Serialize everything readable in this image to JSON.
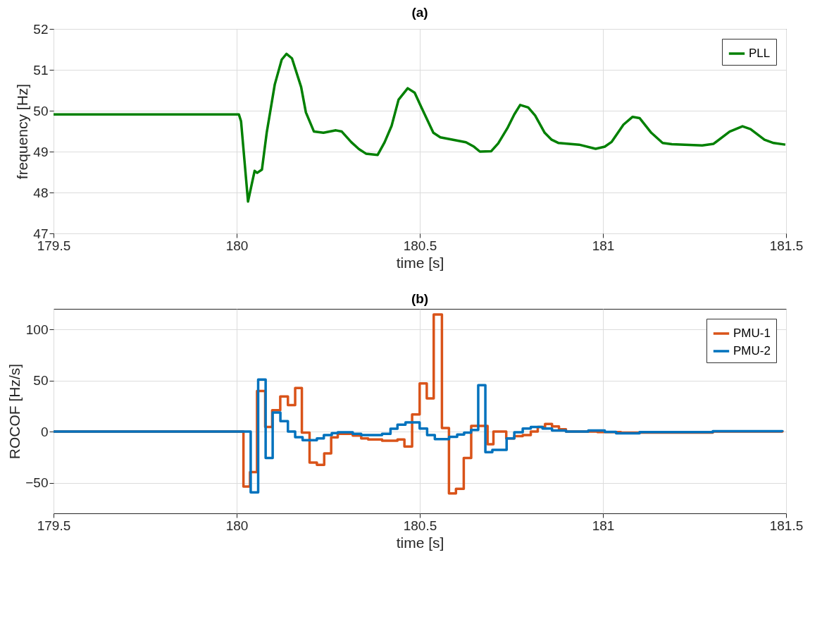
{
  "chart_data": [
    {
      "type": "line",
      "title": "(a)",
      "xlabel": "time [s]",
      "ylabel": "frequency [Hz]",
      "xlim": [
        179.5,
        181.5
      ],
      "xticks": [
        179.5,
        180,
        180.5,
        181,
        181.5
      ],
      "ylim": [
        47,
        52
      ],
      "yticks": [
        47,
        48,
        49,
        50,
        51,
        52
      ],
      "grid": true,
      "legend": "top right",
      "x": [
        179.5,
        179.968,
        180.006,
        180.012,
        180.031,
        180.049,
        180.056,
        180.069,
        180.082,
        180.104,
        180.123,
        180.136,
        180.151,
        180.176,
        180.189,
        180.211,
        180.237,
        180.271,
        180.287,
        180.313,
        180.334,
        180.353,
        180.385,
        180.404,
        180.423,
        180.442,
        180.467,
        180.486,
        180.505,
        180.537,
        180.556,
        180.626,
        180.648,
        180.664,
        180.695,
        180.714,
        180.739,
        180.758,
        180.774,
        180.796,
        180.815,
        180.841,
        180.86,
        180.879,
        180.935,
        180.98,
        181.005,
        181.024,
        181.056,
        181.081,
        181.1,
        181.132,
        181.163,
        181.188,
        181.271,
        181.302,
        181.346,
        181.381,
        181.403,
        181.441,
        181.466,
        181.498
      ],
      "series": [
        {
          "name": "PLL",
          "color": "#008000",
          "values": [
            49.91,
            49.91,
            49.91,
            49.74,
            47.78,
            48.53,
            48.48,
            48.56,
            49.46,
            50.64,
            51.25,
            51.39,
            51.28,
            50.58,
            49.96,
            49.49,
            49.46,
            49.52,
            49.49,
            49.23,
            49.06,
            48.95,
            48.92,
            49.23,
            49.63,
            50.27,
            50.55,
            50.44,
            50.07,
            49.46,
            49.35,
            49.23,
            49.12,
            49.0,
            49.01,
            49.2,
            49.57,
            49.91,
            50.14,
            50.08,
            49.88,
            49.46,
            49.29,
            49.21,
            49.17,
            49.07,
            49.12,
            49.24,
            49.66,
            49.85,
            49.82,
            49.46,
            49.21,
            49.18,
            49.15,
            49.19,
            49.49,
            49.62,
            49.55,
            49.29,
            49.21,
            49.17
          ]
        }
      ]
    },
    {
      "type": "step",
      "title": "(b)",
      "xlabel": "time [s]",
      "ylabel": "ROCOF [Hz/s]",
      "xlim": [
        179.5,
        181.5
      ],
      "xticks": [
        179.5,
        180,
        180.5,
        181,
        181.5
      ],
      "ylim": [
        -80,
        120
      ],
      "yticks": [
        -50,
        0,
        50,
        100
      ],
      "grid": true,
      "legend": "top right",
      "series": [
        {
          "name": "PMU-1",
          "color": "#d95319",
          "x": [
            179.5,
            180.0185,
            180.0364,
            180.0556,
            180.0779,
            180.097,
            180.119,
            180.1399,
            180.1597,
            180.178,
            180.199,
            180.219,
            180.239,
            180.258,
            180.276,
            180.317,
            180.34,
            180.359,
            180.397,
            180.439,
            180.458,
            180.479,
            180.4996,
            180.519,
            180.538,
            180.5604,
            180.5796,
            180.5987,
            180.62,
            180.6403,
            180.685,
            180.701,
            180.736,
            180.758,
            180.781,
            180.803,
            180.822,
            180.842,
            180.861,
            180.88,
            180.899,
            180.985,
            181.049,
            181.3,
            181.49
          ],
          "values": [
            0,
            -53.8,
            -39.7,
            39.7,
            4.4,
            20.9,
            34.3,
            25.8,
            42.6,
            -1.1,
            -30.3,
            -32.6,
            -21.3,
            -5.7,
            -2.3,
            -4.0,
            -6.7,
            -7.8,
            -9.0,
            -7.8,
            -14.6,
            16.8,
            47.1,
            32.5,
            114.4,
            3.4,
            -60.6,
            -56.1,
            -25.8,
            5.6,
            -12.4,
            0,
            -6.7,
            -4.5,
            -3.4,
            0,
            4.4,
            7.4,
            5.0,
            2.2,
            0,
            -0.5,
            -1.0,
            0,
            0.8
          ]
        },
        {
          "name": "PMU-2",
          "color": "#0072bd",
          "x": [
            179.5,
            180.0383,
            180.0587,
            180.0791,
            180.0983,
            180.1194,
            180.1399,
            180.1597,
            180.18,
            180.219,
            180.238,
            180.2597,
            180.276,
            180.317,
            180.34,
            180.397,
            180.42,
            180.439,
            180.461,
            180.4996,
            180.52,
            180.541,
            180.58,
            180.602,
            180.621,
            180.64,
            180.6595,
            180.679,
            180.698,
            180.737,
            180.758,
            180.781,
            180.803,
            180.835,
            180.861,
            180.899,
            180.96,
            181.005,
            181.036,
            181.1,
            181.3,
            181.49
          ],
          "values": [
            0,
            -59.5,
            50.9,
            -25.8,
            18.6,
            10.1,
            0,
            -5.6,
            -8.5,
            -6.7,
            -3.4,
            -1.6,
            -0.7,
            -2.3,
            -3.4,
            -2.3,
            2.7,
            6.7,
            9.0,
            2.9,
            -3.4,
            -7.4,
            -5.2,
            -2.9,
            -1.1,
            1.5,
            45.3,
            -20.2,
            -18.0,
            -6.7,
            -0.7,
            2.9,
            4.4,
            2.9,
            1.1,
            0,
            1.1,
            -0.4,
            -1.8,
            -0.5,
            0.3,
            0
          ]
        }
      ]
    }
  ]
}
